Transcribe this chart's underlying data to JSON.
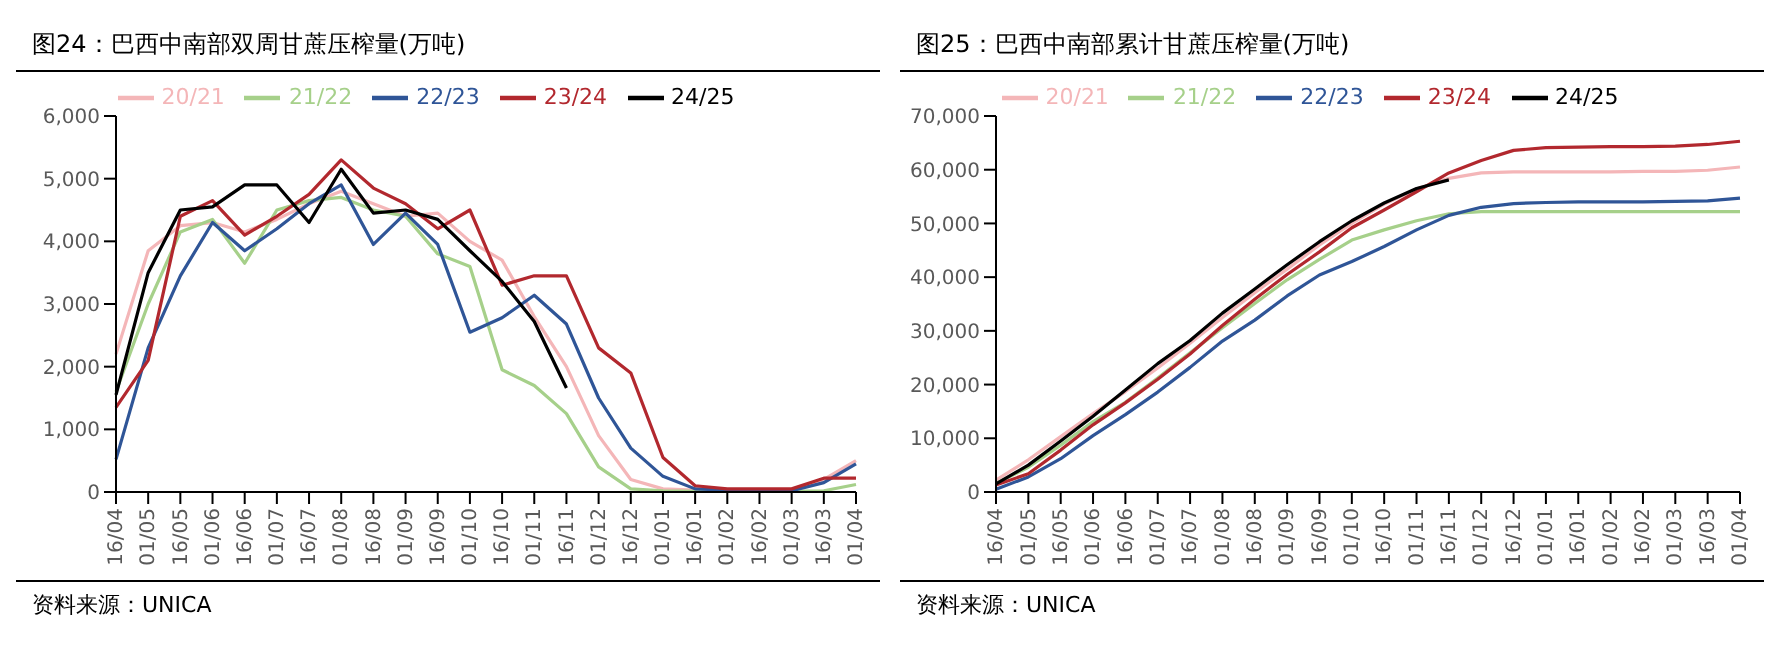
{
  "chart_data": [
    {
      "type": "line",
      "title": "图24：巴西中南部双周甘蔗压榨量(万吨)",
      "annotations": [
        "资料来源：UNICA"
      ],
      "legend": "top",
      "marker": "none",
      "categories": [
        "16/04",
        "01/05",
        "16/05",
        "01/06",
        "16/06",
        "01/07",
        "16/07",
        "01/08",
        "16/08",
        "01/09",
        "16/09",
        "01/10",
        "16/10",
        "01/11",
        "16/11",
        "01/12",
        "16/12",
        "01/01",
        "16/01",
        "01/02",
        "16/02",
        "01/03",
        "16/03",
        "01/04"
      ],
      "ylim": [
        0,
        6000
      ],
      "yticks": [
        {
          "value": 0,
          "label": "0"
        },
        {
          "value": 1000,
          "label": "1,000"
        },
        {
          "value": 2000,
          "label": "2,000"
        },
        {
          "value": 3000,
          "label": "3,000"
        },
        {
          "value": 4000,
          "label": "4,000"
        },
        {
          "value": 5000,
          "label": "5,000"
        },
        {
          "value": 6000,
          "label": "6,000"
        }
      ],
      "series": [
        {
          "name": "20/21",
          "color": "#f4b6b8",
          "values": [
            2200,
            3850,
            4250,
            4300,
            4150,
            4350,
            4600,
            4800,
            4600,
            4400,
            4450,
            4000,
            3700,
            2800,
            2000,
            900,
            200,
            50,
            30,
            20,
            20,
            20,
            200,
            500
          ]
        },
        {
          "name": "21/22",
          "color": "#a6d08a",
          "values": [
            1600,
            3000,
            4150,
            4350,
            3650,
            4500,
            4650,
            4700,
            4500,
            4400,
            3800,
            3600,
            1950,
            1700,
            1250,
            400,
            50,
            20,
            10,
            10,
            10,
            10,
            20,
            120
          ]
        },
        {
          "name": "22/23",
          "color": "#2f5597",
          "values": [
            520,
            2300,
            3450,
            4300,
            3850,
            4200,
            4600,
            4900,
            3950,
            4450,
            3950,
            2550,
            2780,
            3140,
            2680,
            1500,
            700,
            250,
            50,
            30,
            30,
            20,
            150,
            450
          ]
        },
        {
          "name": "23/24",
          "color": "#b2282e",
          "values": [
            1350,
            2100,
            4400,
            4650,
            4100,
            4400,
            4750,
            5300,
            4850,
            4600,
            4200,
            4500,
            3300,
            3450,
            3450,
            2300,
            1900,
            550,
            100,
            50,
            50,
            50,
            220,
            220
          ]
        },
        {
          "name": "24/25",
          "color": "#000000",
          "values": [
            1550,
            3500,
            4500,
            4550,
            4900,
            4900,
            4300,
            5150,
            4450,
            4500,
            4350,
            3850,
            3360,
            2720,
            1660,
            null,
            null,
            null,
            null,
            null,
            null,
            null,
            null,
            null
          ]
        }
      ]
    },
    {
      "type": "line",
      "title": "图25：巴西中南部累计甘蔗压榨量(万吨)",
      "annotations": [
        "资料来源：UNICA"
      ],
      "legend": "top",
      "marker": "none",
      "categories": [
        "16/04",
        "01/05",
        "16/05",
        "01/06",
        "16/06",
        "01/07",
        "16/07",
        "01/08",
        "16/08",
        "01/09",
        "16/09",
        "01/10",
        "16/10",
        "01/11",
        "16/11",
        "01/12",
        "16/12",
        "01/01",
        "16/01",
        "01/02",
        "16/02",
        "01/03",
        "16/03",
        "01/04"
      ],
      "ylim": [
        0,
        70000
      ],
      "yticks": [
        {
          "value": 0,
          "label": "0"
        },
        {
          "value": 10000,
          "label": "10,000"
        },
        {
          "value": 20000,
          "label": "20,000"
        },
        {
          "value": 30000,
          "label": "30,000"
        },
        {
          "value": 40000,
          "label": "40,000"
        },
        {
          "value": 50000,
          "label": "50,000"
        },
        {
          "value": 60000,
          "label": "60,000"
        },
        {
          "value": 70000,
          "label": "70,000"
        }
      ],
      "series": [
        {
          "name": "20/21",
          "color": "#f4b6b8",
          "values": [
            2200,
            6000,
            10300,
            14600,
            18700,
            23100,
            27700,
            32500,
            37100,
            41500,
            46000,
            50000,
            53600,
            56400,
            58400,
            59400,
            59600,
            59600,
            59600,
            59600,
            59700,
            59700,
            59900,
            60500
          ]
        },
        {
          "name": "21/22",
          "color": "#a6d08a",
          "values": [
            1600,
            4600,
            8700,
            13100,
            16700,
            21200,
            25900,
            30600,
            35100,
            39500,
            43300,
            46900,
            48800,
            50500,
            51800,
            52200,
            52200,
            52200,
            52200,
            52200,
            52200,
            52200,
            52200,
            52200
          ]
        },
        {
          "name": "22/23",
          "color": "#2f5597",
          "values": [
            500,
            2800,
            6200,
            10500,
            14400,
            18600,
            23200,
            28100,
            32000,
            36500,
            40400,
            42900,
            45700,
            48800,
            51500,
            53000,
            53700,
            53900,
            54000,
            54000,
            54000,
            54100,
            54200,
            54700
          ]
        },
        {
          "name": "23/24",
          "color": "#b2282e",
          "values": [
            1300,
            3400,
            7800,
            12500,
            16600,
            21000,
            25700,
            31000,
            35900,
            40500,
            44700,
            49200,
            52500,
            55900,
            59400,
            61700,
            63600,
            64100,
            64200,
            64300,
            64300,
            64400,
            64700,
            65300
          ]
        },
        {
          "name": "24/25",
          "color": "#000000",
          "values": [
            1500,
            5000,
            9500,
            14100,
            19000,
            23900,
            28200,
            33300,
            37800,
            42300,
            46600,
            50500,
            53800,
            56500,
            58100,
            null,
            null,
            null,
            null,
            null,
            null,
            null,
            null,
            null
          ]
        }
      ]
    }
  ]
}
